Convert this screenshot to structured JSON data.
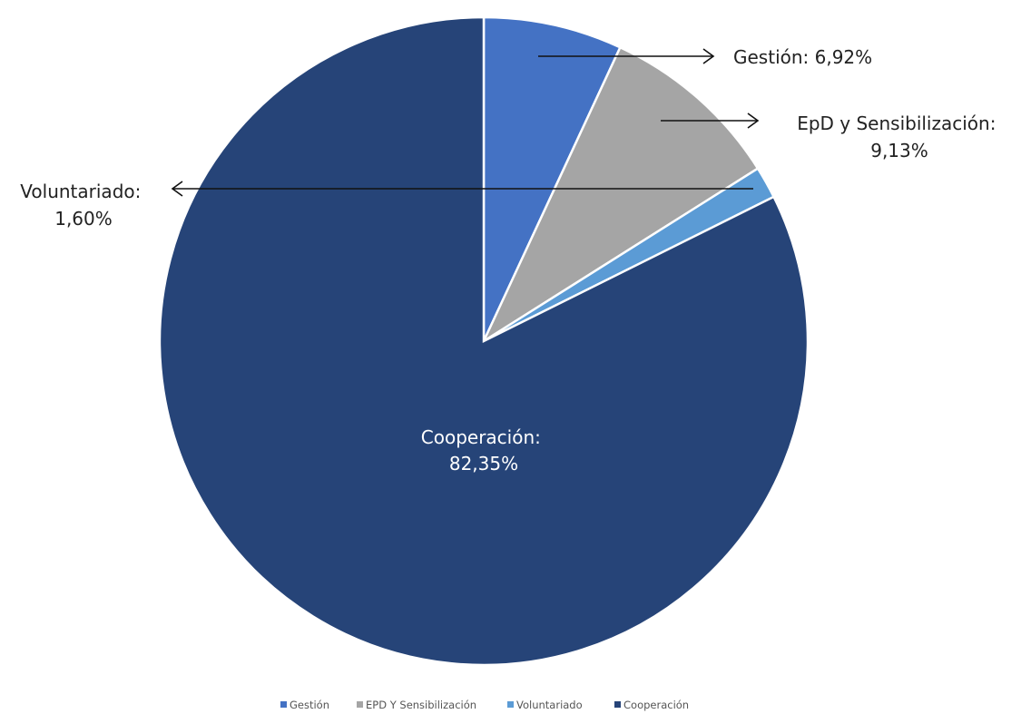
{
  "chart_data": {
    "type": "pie",
    "title": "",
    "categories": [
      "Gestión",
      "EPD Y Sensibilización",
      "Voluntariado",
      "Cooperación"
    ],
    "values": [
      6.92,
      9.13,
      1.6,
      82.35
    ],
    "colors": [
      "#4472C4",
      "#A5A5A5",
      "#5B9BD5",
      "#264478"
    ],
    "start_angle_deg": 0,
    "direction": "clockwise",
    "data_labels": [
      {
        "lines": [
          "Gestión: 6,92%"
        ]
      },
      {
        "lines": [
          "EpD y Sensibilización:",
          "9,13%"
        ]
      },
      {
        "lines": [
          "Voluntariado:",
          "1,60%"
        ]
      },
      {
        "lines": [
          "Cooperación:",
          "82,35%"
        ]
      }
    ],
    "legend": {
      "placement": "bottom",
      "entries": [
        "Gestión",
        "EPD Y Sensibilización",
        "Voluntariado",
        "Cooperación"
      ]
    }
  }
}
